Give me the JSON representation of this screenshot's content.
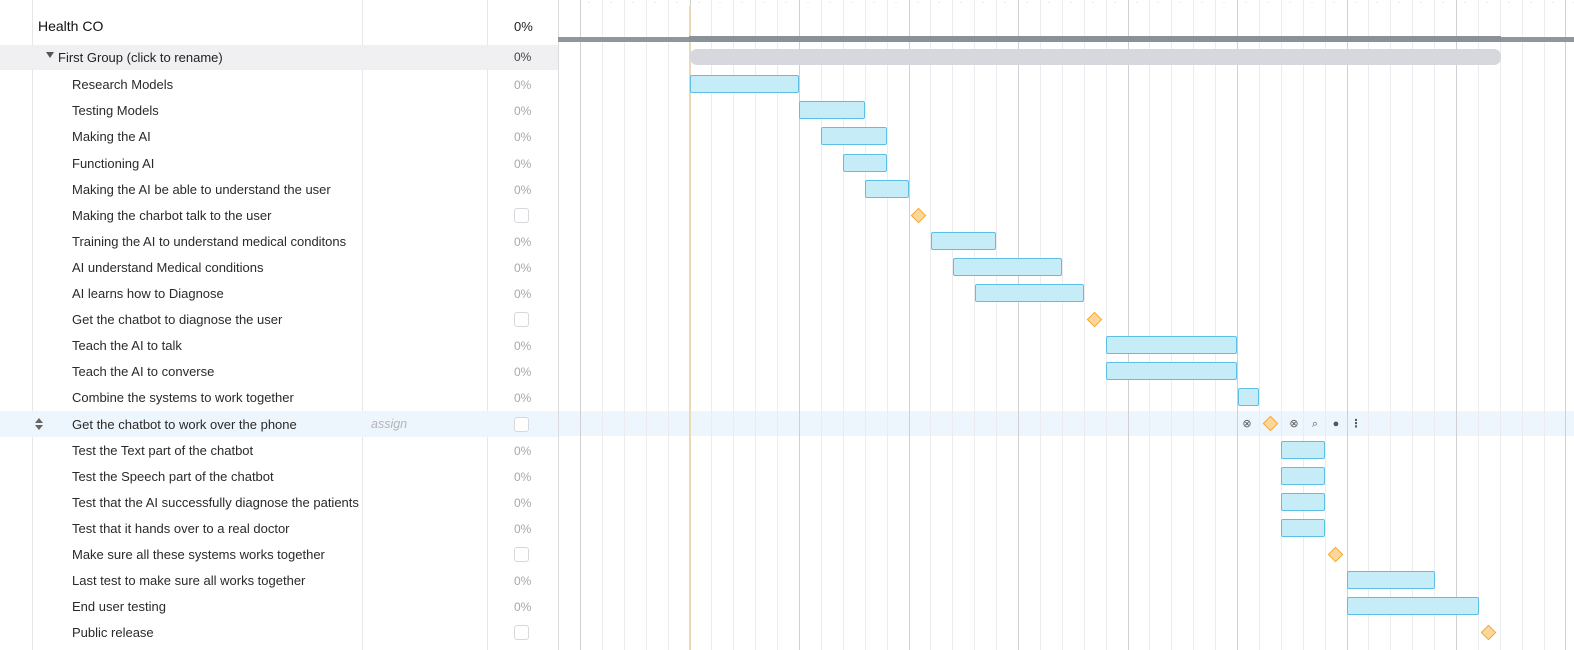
{
  "project": {
    "title": "Health CO",
    "progress": "0%"
  },
  "group": {
    "name": "First Group (click to rename)",
    "progress": "0%"
  },
  "tasks": [
    {
      "name": "Research Models",
      "progress": "0%",
      "milestone": false
    },
    {
      "name": "Testing Models",
      "progress": "0%",
      "milestone": false
    },
    {
      "name": "Making the AI",
      "progress": "0%",
      "milestone": false
    },
    {
      "name": "Functioning AI",
      "progress": "0%",
      "milestone": false
    },
    {
      "name": "Making the AI be able to understand the user",
      "progress": "0%",
      "milestone": false
    },
    {
      "name": "Making the charbot talk to the user",
      "progress": "",
      "milestone": true
    },
    {
      "name": "Training the AI to understand medical conditons",
      "progress": "0%",
      "milestone": false
    },
    {
      "name": "AI understand Medical conditions",
      "progress": "0%",
      "milestone": false
    },
    {
      "name": "AI learns how to Diagnose",
      "progress": "0%",
      "milestone": false
    },
    {
      "name": "Get the chatbot to diagnose the user",
      "progress": "",
      "milestone": true
    },
    {
      "name": "Teach the AI to talk",
      "progress": "0%",
      "milestone": false
    },
    {
      "name": "Teach the AI to converse",
      "progress": "0%",
      "milestone": false
    },
    {
      "name": "Combine the systems to work together",
      "progress": "0%",
      "milestone": false
    },
    {
      "name": "Get the chatbot to work over the phone",
      "progress": "",
      "milestone": true,
      "assign": "assign",
      "highlighted": true
    },
    {
      "name": "Test the Text part of the chatbot",
      "progress": "0%",
      "milestone": false
    },
    {
      "name": "Test the Speech part of the chatbot",
      "progress": "0%",
      "milestone": false
    },
    {
      "name": "Test that the AI successfully diagnose the patients",
      "progress": "0%",
      "milestone": false
    },
    {
      "name": "Test that it hands over to a real doctor",
      "progress": "0%",
      "milestone": false
    },
    {
      "name": "Make sure all these systems works together",
      "progress": "",
      "milestone": true
    },
    {
      "name": "Last test to make sure all works together",
      "progress": "0%",
      "milestone": false
    },
    {
      "name": "End user testing",
      "progress": "0%",
      "milestone": false
    },
    {
      "name": "Public release",
      "progress": "",
      "milestone": true
    }
  ],
  "row_actions": {
    "icons": [
      "remove-link-icon",
      "milestone-diamond-icon",
      "link-icon",
      "comment-icon",
      "assignee-icon",
      "more-options-icon"
    ]
  },
  "colors": {
    "bar_fill": "#c6ecf8",
    "bar_border": "#5bbfe6",
    "milestone_fill": "#fdd79a",
    "milestone_border": "#f2a93a",
    "group_bar": "#d7d8dd",
    "project_bar": "#8e969e",
    "today_line": "#e9d9b5",
    "highlight_row": "#eef6fd"
  }
}
